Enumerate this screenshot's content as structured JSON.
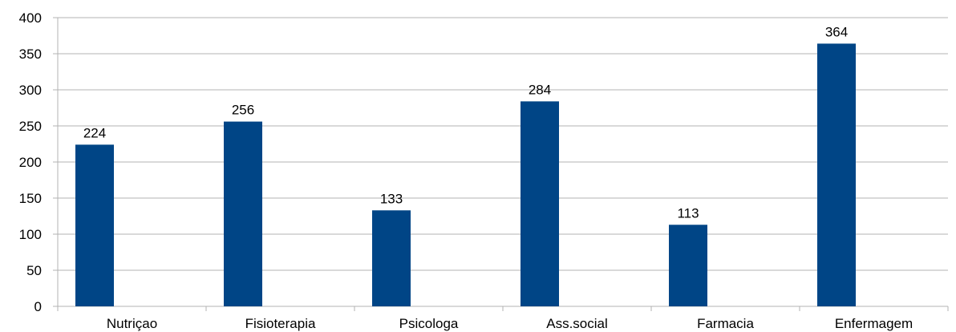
{
  "chart_data": {
    "type": "bar",
    "categories": [
      "Nutriçao",
      "Fisioterapia",
      "Psicologa",
      "Ass.social",
      "Farmacia",
      "Enfermagem"
    ],
    "values": [
      224,
      256,
      133,
      284,
      113,
      364
    ],
    "data_labels": [
      "224",
      "256",
      "133",
      "284",
      "113",
      "364"
    ],
    "ylim": [
      0,
      400
    ],
    "yticks": [
      0,
      50,
      100,
      150,
      200,
      250,
      300,
      350,
      400
    ],
    "ytick_labels": [
      "0",
      "50",
      "100",
      "150",
      "200",
      "250",
      "300",
      "350",
      "400"
    ],
    "grid": true,
    "legend": "none",
    "colors": {
      "bar": "#004586",
      "grid": "#b3b3b3",
      "axis": "#b3b3b3"
    }
  }
}
